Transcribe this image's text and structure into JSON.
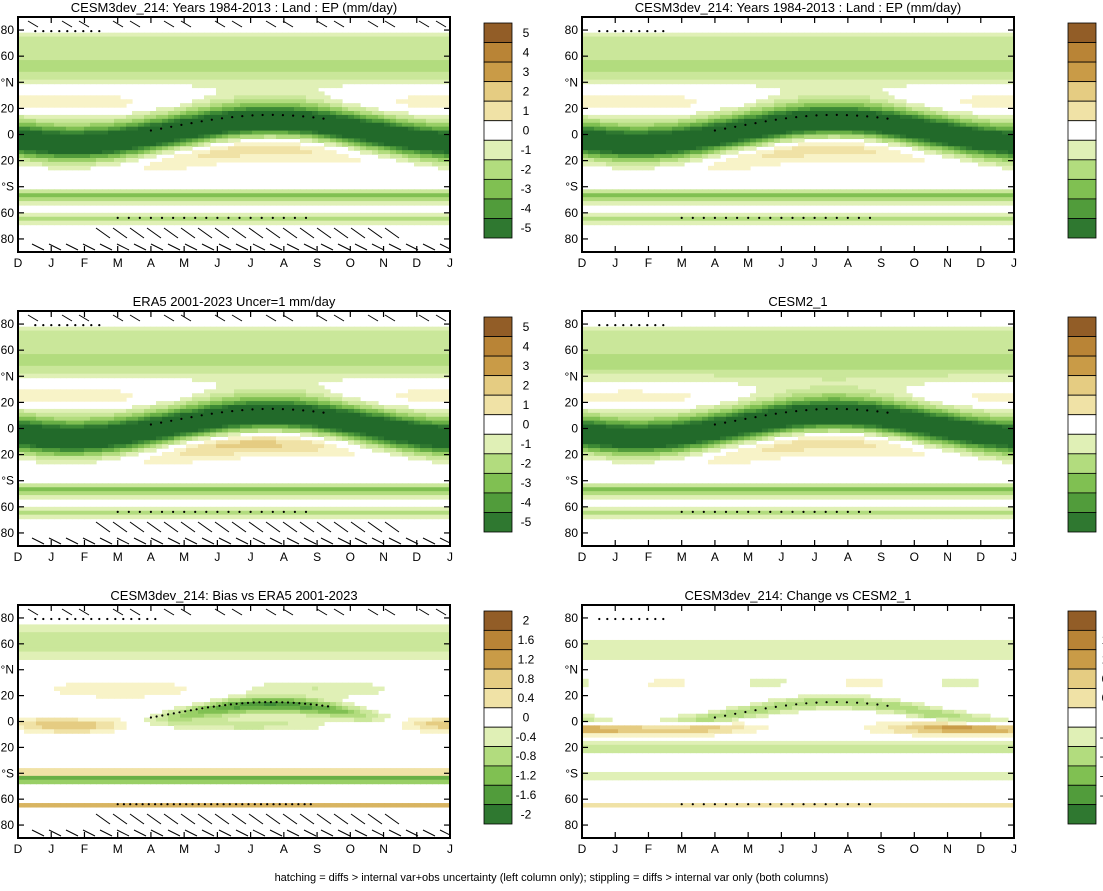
{
  "caption": "hatching = diffs > internal var+obs uncertainty (left column only); stippling = diffs > internal var only (both columns)",
  "colors": {
    "pos": [
      "#f8f3c8",
      "#f0e2a6",
      "#e5cc82",
      "#d8b461",
      "#c99b47",
      "#b98436",
      "#a66f2e",
      "#925d27"
    ],
    "neg": [
      "#e0f0b6",
      "#cae79a",
      "#b2dc7e",
      "#99cf66",
      "#80c052",
      "#68af45",
      "#519c3b",
      "#3d8a35",
      "#2f7830",
      "#226a2a"
    ],
    "axis": "#000000"
  },
  "shared": {
    "months": [
      "D",
      "J",
      "F",
      "M",
      "A",
      "M",
      "J",
      "J",
      "A",
      "S",
      "O",
      "N",
      "D",
      "J"
    ],
    "yticks": [
      "80",
      "60",
      "°N",
      "20",
      "0",
      "20",
      "°S",
      "60",
      "80"
    ]
  },
  "colorbar_main": {
    "labels": [
      "5",
      "4",
      "3",
      "2",
      "1",
      "0",
      "-1",
      "-2",
      "-3",
      "-4",
      "-5"
    ]
  },
  "colorbar_diff": {
    "labels": [
      "2",
      "1.6",
      "1.2",
      "0.8",
      "0.4",
      "0",
      "-0.4",
      "-0.8",
      "-1.2",
      "-1.6",
      "-2"
    ]
  },
  "chart_data": [
    {
      "type": "heatmap",
      "title": "CESM3dev_214: Years 1984-2013 : Land : EP (mm/day)",
      "variant": "model",
      "hatch": true,
      "stipple": "sparse"
    },
    {
      "type": "heatmap",
      "title": "CESM3dev_214: Years 1984-2013 : Land : EP (mm/day)",
      "variant": "model",
      "hatch": false,
      "stipple": "sparse"
    },
    {
      "type": "heatmap",
      "title": "ERA5 2001-2023 Uncer=1 mm/day",
      "variant": "obs",
      "hatch": true,
      "stipple": "sparse"
    },
    {
      "type": "heatmap",
      "title": "CESM2_1",
      "variant": "model2",
      "hatch": false,
      "stipple": "sparse"
    },
    {
      "type": "heatmap",
      "title": "CESM3dev_214: Bias vs ERA5 2001-2023",
      "variant": "bias",
      "hatch": true,
      "stipple": "dense"
    },
    {
      "type": "heatmap",
      "title": "CESM3dev_214: Change vs CESM2_1",
      "variant": "change",
      "hatch": false,
      "stipple": "sparse"
    }
  ]
}
